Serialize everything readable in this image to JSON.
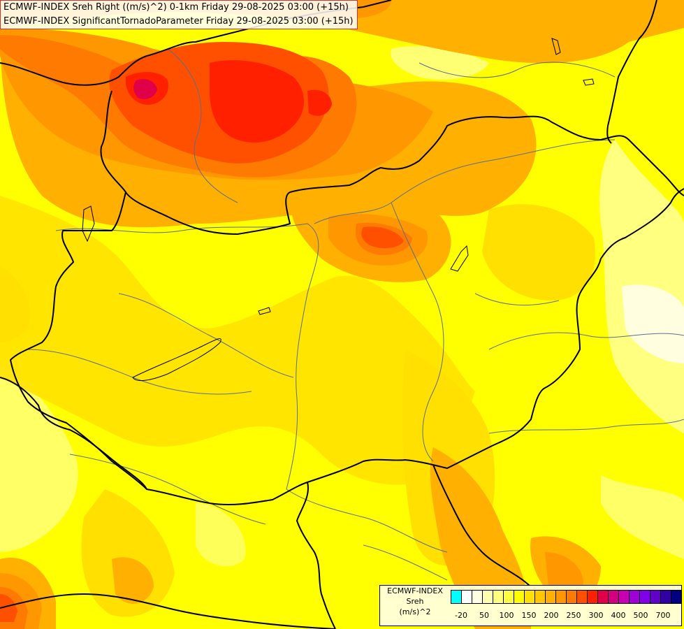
{
  "title": {
    "line1": "ECMWF-INDEX Sreh Right ((m/s)^2) 0-1km Friday 29-08-2025 03:00 (+15h)",
    "line2": "ECMWF-INDEX SignificantTornadoParameter Friday 29-08-2025 03:00 (+15h)"
  },
  "legend": {
    "title": "ECMWF-INDEX",
    "variable": "Sreh",
    "unit": "(m/s)^2",
    "colors": [
      "#00ffff",
      "#ffffff",
      "#ffffe0",
      "#ffffb0",
      "#ffff80",
      "#ffff40",
      "#ffff00",
      "#ffe000",
      "#ffc800",
      "#ffb000",
      "#ff9800",
      "#ff7a00",
      "#ff5000",
      "#ff2000",
      "#e0004a",
      "#d00080",
      "#c800b4",
      "#a000d8",
      "#8000e8",
      "#6000c8",
      "#3000a0",
      "#000080"
    ],
    "ticks": [
      "-20",
      "50",
      "100",
      "150",
      "200",
      "250",
      "300",
      "400",
      "500",
      "700"
    ]
  },
  "map_colors": {
    "base": "#ffff00",
    "pale": "#ffff80",
    "light": "#ffe000",
    "orange1": "#ffb000",
    "orange2": "#ff9800",
    "orange3": "#ff7a00",
    "red1": "#ff5000",
    "red2": "#ff2000",
    "magenta": "#e0004a",
    "border": "#000000",
    "river": "#5a6e8c"
  }
}
